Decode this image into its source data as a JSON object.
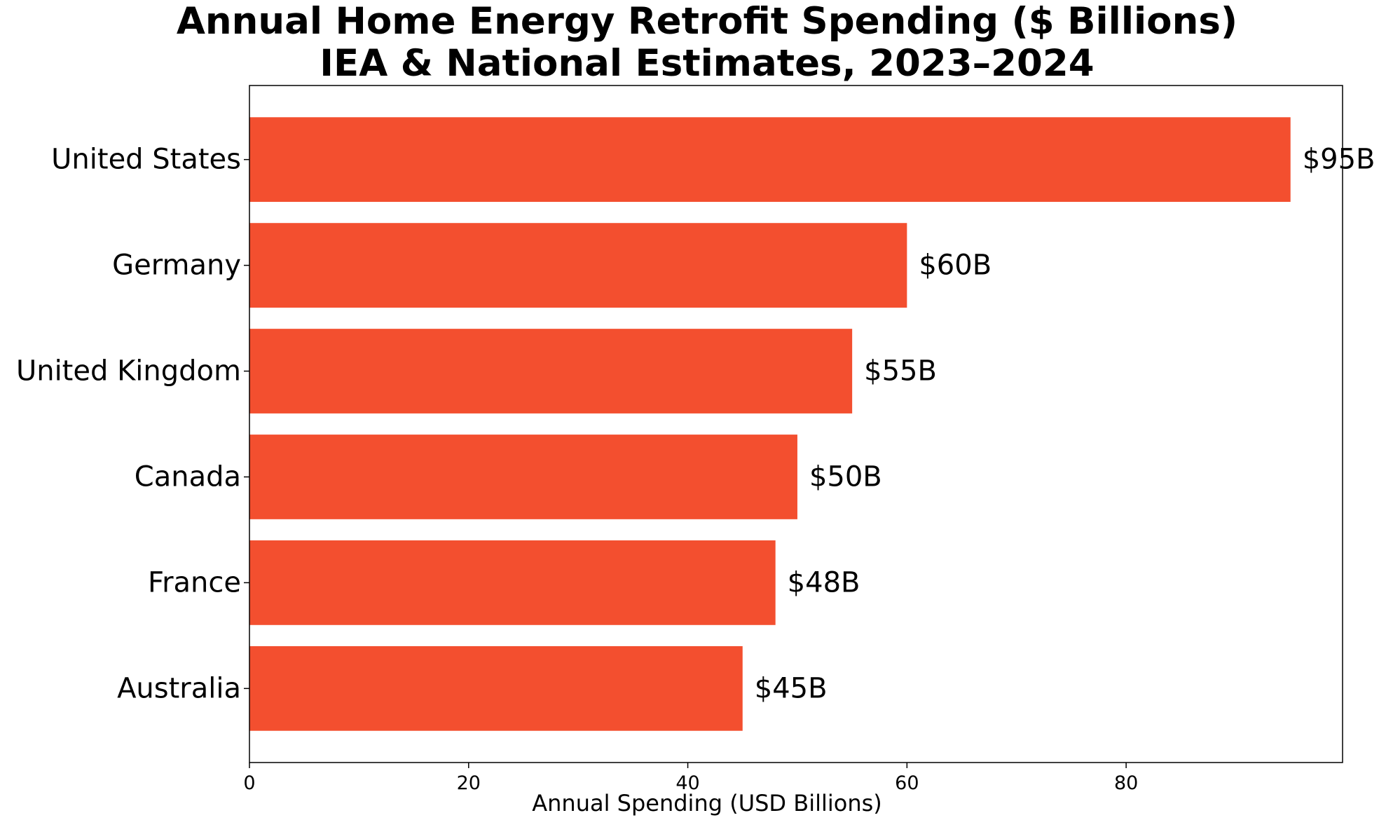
{
  "chart_data": {
    "type": "bar",
    "orientation": "horizontal",
    "title": "Annual Home Energy Retrofit Spending ($ Billions)",
    "subtitle": "IEA & National Estimates, 2023–2024",
    "xlabel": "Annual Spending (USD Billions)",
    "ylabel": "",
    "categories": [
      "United States",
      "Germany",
      "United Kingdom",
      "Canada",
      "France",
      "Australia"
    ],
    "values": [
      95,
      60,
      55,
      50,
      48,
      45
    ],
    "value_labels": [
      "$95B",
      "$60B",
      "$55B",
      "$50B",
      "$48B",
      "$45B"
    ],
    "xlim": [
      0,
      99.75
    ],
    "xticks": [
      0,
      20,
      40,
      60,
      80
    ],
    "xtick_labels": [
      "0",
      "20",
      "40",
      "60",
      "80"
    ],
    "bar_color": "#f34f2f",
    "grid": false,
    "legend": "none"
  }
}
